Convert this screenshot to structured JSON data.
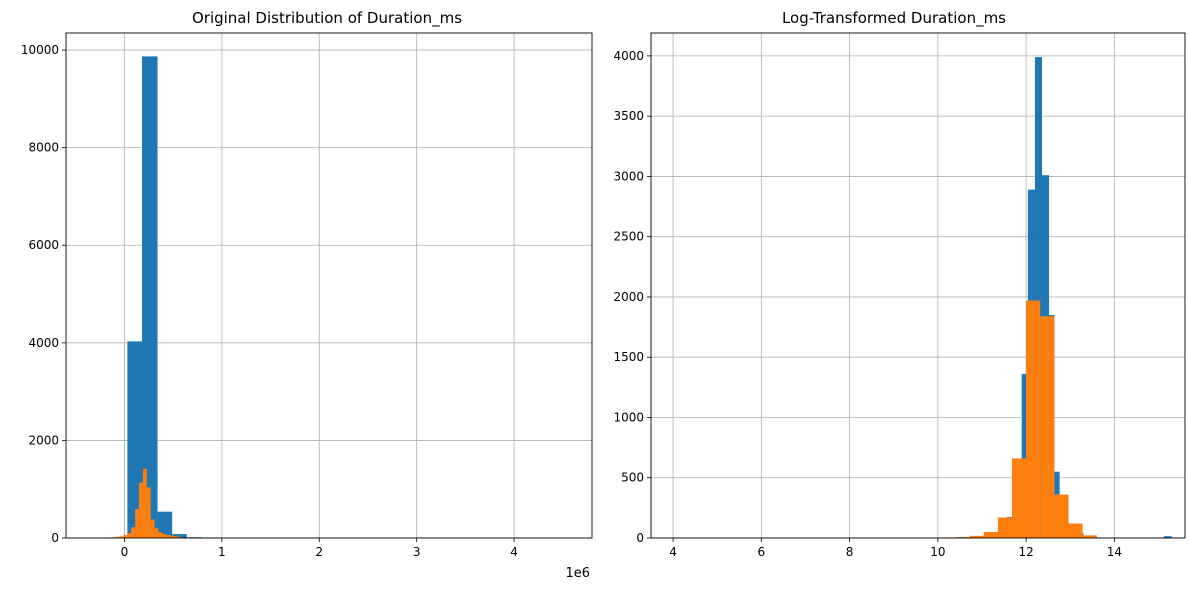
{
  "chart_data": [
    {
      "type": "bar",
      "title": "Original Distribution of Duration_ms",
      "xlabel": "",
      "ylabel": "",
      "x_offset_text": "1e6",
      "xlim": [
        -0.6,
        4.8
      ],
      "ylim": [
        0,
        10350
      ],
      "xticks": [
        0,
        1,
        2,
        3,
        4
      ],
      "xtick_labels": [
        "0",
        "1",
        "2",
        "3",
        "4"
      ],
      "yticks": [
        0,
        2000,
        4000,
        6000,
        8000,
        10000
      ],
      "ytick_labels": [
        "0",
        "2000",
        "4000",
        "6000",
        "8000",
        "10000"
      ],
      "grid": true,
      "series": [
        {
          "color": "#1f77b4",
          "bins": [
            [
              0.03,
              0.18,
              4030
            ],
            [
              0.18,
              0.34,
              9870
            ],
            [
              0.34,
              0.49,
              540
            ],
            [
              0.49,
              0.64,
              80
            ],
            [
              0.64,
              0.8,
              15
            ],
            [
              0.8,
              0.95,
              5
            ]
          ]
        },
        {
          "color": "#ff7f0e",
          "bins": [
            [
              -0.17,
              -0.13,
              5
            ],
            [
              -0.13,
              -0.09,
              15
            ],
            [
              -0.09,
              -0.05,
              25
            ],
            [
              -0.05,
              -0.01,
              35
            ],
            [
              -0.01,
              0.03,
              60
            ],
            [
              0.03,
              0.07,
              100
            ],
            [
              0.07,
              0.11,
              220
            ],
            [
              0.11,
              0.15,
              590
            ],
            [
              0.15,
              0.19,
              1130
            ],
            [
              0.19,
              0.23,
              1420
            ],
            [
              0.23,
              0.27,
              1040
            ],
            [
              0.27,
              0.31,
              380
            ],
            [
              0.31,
              0.35,
              200
            ],
            [
              0.35,
              0.39,
              120
            ],
            [
              0.39,
              0.43,
              80
            ],
            [
              0.43,
              0.47,
              60
            ],
            [
              0.47,
              0.51,
              50
            ],
            [
              0.51,
              0.55,
              35
            ],
            [
              0.55,
              0.59,
              20
            ]
          ]
        }
      ]
    },
    {
      "type": "bar",
      "title": "Log-Transformed Duration_ms",
      "xlabel": "",
      "ylabel": "",
      "xlim": [
        3.5,
        15.6
      ],
      "ylim": [
        0,
        4190
      ],
      "xticks": [
        4,
        6,
        8,
        10,
        12,
        14
      ],
      "xtick_labels": [
        "4",
        "6",
        "8",
        "10",
        "12",
        "14"
      ],
      "yticks": [
        0,
        500,
        1000,
        1500,
        2000,
        2500,
        3000,
        3500,
        4000
      ],
      "ytick_labels": [
        "0",
        "500",
        "1000",
        "1500",
        "2000",
        "2500",
        "3000",
        "3500",
        "4000"
      ],
      "grid": true,
      "series": [
        {
          "color": "#1f77b4",
          "bins": [
            [
              10.8,
              11.02,
              5
            ],
            [
              11.02,
              11.24,
              15
            ],
            [
              11.24,
              11.46,
              40
            ],
            [
              11.46,
              11.57,
              110
            ],
            [
              11.57,
              11.68,
              175
            ],
            [
              11.68,
              11.79,
              470
            ],
            [
              11.79,
              11.9,
              660
            ],
            [
              11.9,
              12.04,
              1360
            ],
            [
              12.04,
              12.2,
              2890
            ],
            [
              12.2,
              12.36,
              3990
            ],
            [
              12.36,
              12.52,
              3010
            ],
            [
              12.52,
              12.64,
              1850
            ],
            [
              12.64,
              12.76,
              550
            ],
            [
              12.76,
              12.88,
              360
            ],
            [
              12.88,
              13.04,
              120
            ],
            [
              13.04,
              13.3,
              40
            ],
            [
              13.3,
              13.6,
              12
            ],
            [
              15.12,
              15.3,
              15
            ]
          ]
        },
        {
          "color": "#ff7f0e",
          "bins": [
            [
              10.08,
              10.4,
              5
            ],
            [
              10.4,
              10.72,
              8
            ],
            [
              10.72,
              11.04,
              18
            ],
            [
              11.04,
              11.36,
              50
            ],
            [
              11.36,
              11.68,
              170
            ],
            [
              11.68,
              12.0,
              660
            ],
            [
              12.0,
              12.32,
              1970
            ],
            [
              12.32,
              12.64,
              1840
            ],
            [
              12.64,
              12.96,
              360
            ],
            [
              12.96,
              13.28,
              120
            ],
            [
              13.28,
              13.6,
              22
            ]
          ]
        }
      ]
    }
  ]
}
